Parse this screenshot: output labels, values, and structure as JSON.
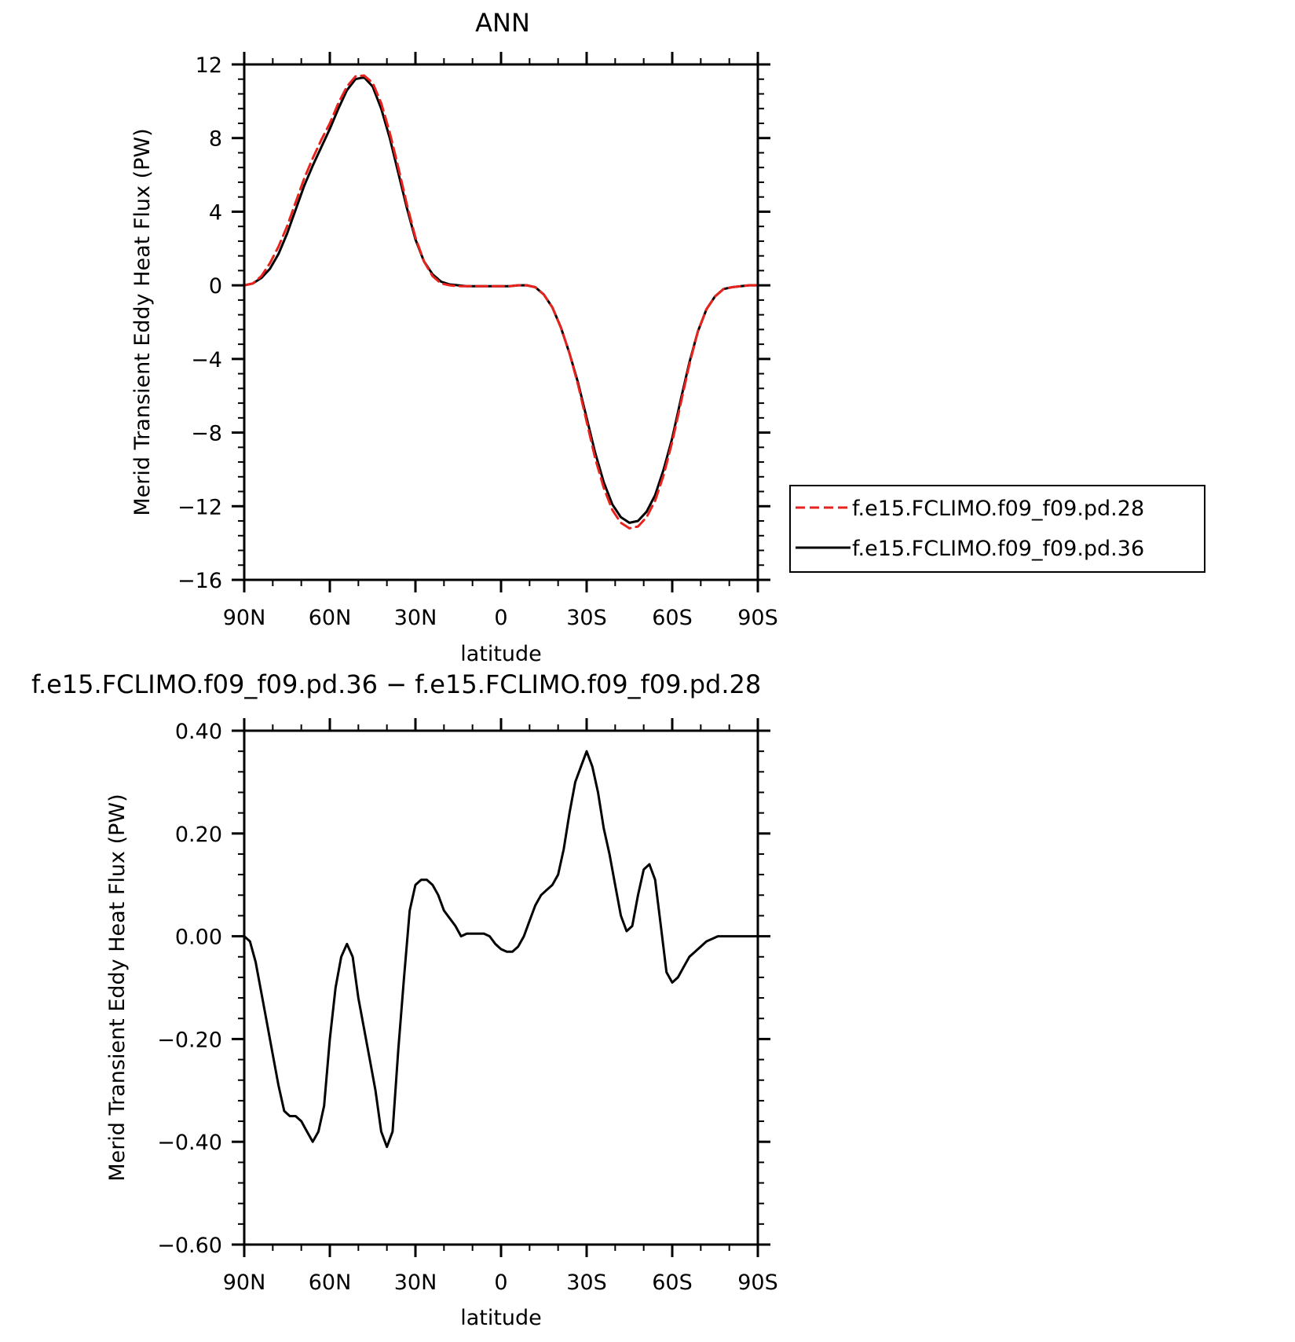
{
  "chart_data": [
    {
      "type": "line",
      "title": "ANN",
      "xlabel": "latitude",
      "ylabel": "Merid Transient Eddy Heat Flux (PW)",
      "x_tick_labels": [
        "90N",
        "60N",
        "30N",
        "0",
        "30S",
        "60S",
        "90S"
      ],
      "x_tick_values": [
        90,
        60,
        30,
        0,
        -30,
        -60,
        -90
      ],
      "y_tick_labels": [
        "12",
        "8",
        "4",
        "0",
        "−4",
        "−8",
        "−12",
        "−16"
      ],
      "y_tick_values": [
        12,
        8,
        4,
        0,
        -4,
        -8,
        -12,
        -16
      ],
      "xlim": [
        90,
        -90
      ],
      "ylim": [
        -16,
        12
      ],
      "legend_position": "right",
      "colors": {
        "pd28": "#e8231e",
        "pd36": "#000000"
      },
      "series": [
        {
          "name": "f.e15.FCLIMO.f09_f09.pd.28",
          "color": "#e8231e",
          "style": "dashed",
          "x": [
            90,
            87,
            84,
            81,
            78,
            75,
            72,
            69,
            66,
            63,
            60,
            57,
            54,
            51,
            48,
            45,
            42,
            39,
            36,
            33,
            30,
            27,
            24,
            21,
            18,
            15,
            12,
            9,
            6,
            3,
            0,
            -3,
            -6,
            -9,
            -12,
            -15,
            -18,
            -21,
            -24,
            -27,
            -30,
            -33,
            -36,
            -39,
            -42,
            -45,
            -48,
            -51,
            -54,
            -57,
            -60,
            -63,
            -66,
            -69,
            -72,
            -75,
            -78,
            -81,
            -84,
            -87,
            -90
          ],
          "y": [
            0,
            0.1,
            0.5,
            1.2,
            2.1,
            3.2,
            4.5,
            5.8,
            6.9,
            7.9,
            8.8,
            9.9,
            10.8,
            11.35,
            11.4,
            11.0,
            9.9,
            8.3,
            6.4,
            4.4,
            2.6,
            1.3,
            0.5,
            0.1,
            0.0,
            -0.05,
            -0.05,
            -0.05,
            -0.05,
            -0.05,
            -0.05,
            -0.05,
            0.0,
            0.0,
            -0.1,
            -0.5,
            -1.2,
            -2.3,
            -3.7,
            -5.4,
            -7.4,
            -9.4,
            -11.0,
            -12.2,
            -12.9,
            -13.2,
            -13.1,
            -12.6,
            -11.7,
            -10.3,
            -8.5,
            -6.4,
            -4.3,
            -2.5,
            -1.3,
            -0.6,
            -0.2,
            -0.1,
            -0.05,
            0,
            0
          ]
        },
        {
          "name": "f.e15.FCLIMO.f09_f09.pd.36",
          "color": "#000000",
          "style": "solid",
          "x": [
            90,
            87,
            84,
            81,
            78,
            75,
            72,
            69,
            66,
            63,
            60,
            57,
            54,
            51,
            48,
            45,
            42,
            39,
            36,
            33,
            30,
            27,
            24,
            21,
            18,
            15,
            12,
            9,
            6,
            3,
            0,
            -3,
            -6,
            -9,
            -12,
            -15,
            -18,
            -21,
            -24,
            -27,
            -30,
            -33,
            -36,
            -39,
            -42,
            -45,
            -48,
            -51,
            -54,
            -57,
            -60,
            -63,
            -66,
            -69,
            -72,
            -75,
            -78,
            -81,
            -84,
            -87,
            -90
          ],
          "y": [
            0,
            0.1,
            0.4,
            0.9,
            1.7,
            2.8,
            4.1,
            5.4,
            6.5,
            7.5,
            8.5,
            9.6,
            10.6,
            11.2,
            11.3,
            10.8,
            9.6,
            8.0,
            6.1,
            4.2,
            2.5,
            1.3,
            0.6,
            0.2,
            0.05,
            0.0,
            -0.05,
            -0.05,
            -0.05,
            -0.05,
            -0.05,
            -0.05,
            0.0,
            0.0,
            -0.1,
            -0.5,
            -1.2,
            -2.3,
            -3.7,
            -5.3,
            -7.2,
            -9.1,
            -10.7,
            -11.9,
            -12.6,
            -12.9,
            -12.8,
            -12.3,
            -11.4,
            -10.0,
            -8.3,
            -6.2,
            -4.2,
            -2.5,
            -1.3,
            -0.6,
            -0.2,
            -0.1,
            -0.05,
            0,
            0
          ]
        }
      ]
    },
    {
      "type": "line",
      "title": "f.e15.FCLIMO.f09_f09.pd.36 − f.e15.FCLIMO.f09_f09.pd.28",
      "xlabel": "latitude",
      "ylabel": "Merid Transient Eddy Heat Flux (PW)",
      "x_tick_labels": [
        "90N",
        "60N",
        "30N",
        "0",
        "30S",
        "60S",
        "90S"
      ],
      "x_tick_values": [
        90,
        60,
        30,
        0,
        -30,
        -60,
        -90
      ],
      "y_tick_labels": [
        "0.40",
        "0.20",
        "0.00",
        "−0.20",
        "−0.40",
        "−0.60"
      ],
      "y_tick_values": [
        0.4,
        0.2,
        0.0,
        -0.2,
        -0.4,
        -0.6
      ],
      "xlim": [
        90,
        -90
      ],
      "ylim": [
        -0.6,
        0.4
      ],
      "colors": {
        "line": "#000000"
      },
      "series": [
        {
          "color": "#000000",
          "style": "solid",
          "x": [
            90,
            88,
            86,
            84,
            82,
            80,
            78,
            76,
            74,
            72,
            70,
            68,
            66,
            64,
            62,
            60,
            58,
            56,
            54,
            52,
            50,
            48,
            46,
            44,
            42,
            40,
            38,
            36,
            34,
            32,
            30,
            28,
            26,
            24,
            22,
            20,
            18,
            16,
            14,
            12,
            10,
            8,
            6,
            4,
            2,
            0,
            -2,
            -4,
            -6,
            -8,
            -10,
            -12,
            -14,
            -16,
            -18,
            -20,
            -22,
            -24,
            -26,
            -28,
            -30,
            -32,
            -34,
            -36,
            -38,
            -40,
            -42,
            -44,
            -46,
            -48,
            -50,
            -52,
            -54,
            -56,
            -58,
            -60,
            -62,
            -64,
            -66,
            -68,
            -70,
            -72,
            -74,
            -76,
            -78,
            -80,
            -82,
            -84,
            -86,
            -88,
            -90
          ],
          "y": [
            0,
            -0.01,
            -0.05,
            -0.11,
            -0.17,
            -0.23,
            -0.29,
            -0.34,
            -0.35,
            -0.35,
            -0.36,
            -0.38,
            -0.4,
            -0.38,
            -0.33,
            -0.2,
            -0.1,
            -0.04,
            -0.015,
            -0.04,
            -0.12,
            -0.18,
            -0.24,
            -0.3,
            -0.38,
            -0.41,
            -0.38,
            -0.22,
            -0.08,
            0.05,
            0.1,
            0.11,
            0.11,
            0.1,
            0.08,
            0.05,
            0.035,
            0.02,
            0.0,
            0.005,
            0.005,
            0.005,
            0.005,
            0.0,
            -0.015,
            -0.025,
            -0.03,
            -0.03,
            -0.02,
            0.0,
            0.03,
            0.06,
            0.08,
            0.09,
            0.1,
            0.12,
            0.17,
            0.24,
            0.3,
            0.33,
            0.36,
            0.33,
            0.28,
            0.21,
            0.16,
            0.1,
            0.04,
            0.01,
            0.02,
            0.08,
            0.13,
            0.14,
            0.11,
            0.02,
            -0.07,
            -0.09,
            -0.08,
            -0.06,
            -0.04,
            -0.03,
            -0.02,
            -0.01,
            -0.005,
            0,
            0,
            0,
            0,
            0,
            0,
            0,
            0
          ]
        }
      ]
    }
  ]
}
